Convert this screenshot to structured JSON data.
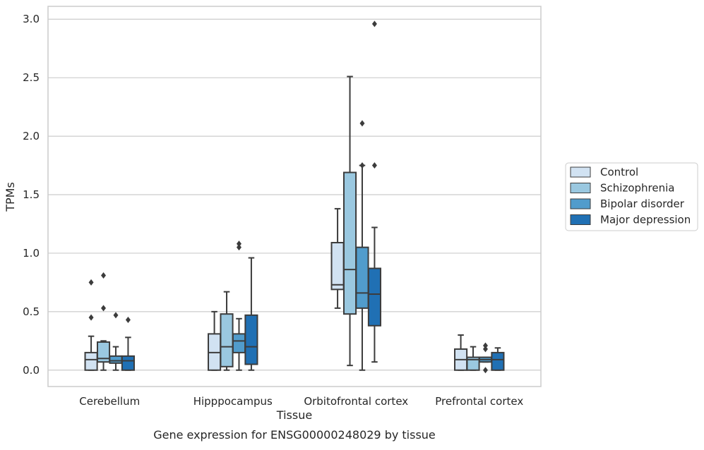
{
  "chart_data": {
    "type": "boxplot",
    "title": "",
    "caption": "Gene expression for ENSG00000248029 by tissue",
    "xlabel": "Tissue",
    "ylabel": "TPMs",
    "ylim": [
      -0.14,
      3.11
    ],
    "yticks": [
      0.0,
      0.5,
      1.0,
      1.5,
      2.0,
      2.5,
      3.0
    ],
    "ytick_labels": [
      "0.0",
      "0.5",
      "1.0",
      "1.5",
      "2.0",
      "2.5",
      "3.0"
    ],
    "grid": "horizontal",
    "legend_position": "right",
    "categories": [
      "Cerebellum",
      "Hipppocampus",
      "Orbitofrontal cortex",
      "Prefrontal cortex"
    ],
    "series": [
      {
        "name": "Control",
        "color": "#d1e2f2",
        "boxes": [
          {
            "whisker_low": 0.0,
            "q1": 0.0,
            "median": 0.09,
            "q3": 0.15,
            "whisker_high": 0.29,
            "outliers": [
              0.45,
              0.75
            ]
          },
          {
            "whisker_low": 0.0,
            "q1": 0.0,
            "median": 0.15,
            "q3": 0.31,
            "whisker_high": 0.5,
            "outliers": []
          },
          {
            "whisker_low": 0.53,
            "q1": 0.69,
            "median": 0.73,
            "q3": 1.09,
            "whisker_high": 1.38,
            "outliers": []
          },
          {
            "whisker_low": 0.0,
            "q1": 0.0,
            "median": 0.09,
            "q3": 0.18,
            "whisker_high": 0.3,
            "outliers": []
          }
        ]
      },
      {
        "name": "Schizophrenia",
        "color": "#9ac8e0",
        "boxes": [
          {
            "whisker_low": 0.0,
            "q1": 0.07,
            "median": 0.1,
            "q3": 0.24,
            "whisker_high": 0.25,
            "outliers": [
              0.53,
              0.81
            ]
          },
          {
            "whisker_low": 0.0,
            "q1": 0.03,
            "median": 0.2,
            "q3": 0.48,
            "whisker_high": 0.67,
            "outliers": []
          },
          {
            "whisker_low": 0.04,
            "q1": 0.48,
            "median": 0.86,
            "q3": 1.69,
            "whisker_high": 2.51,
            "outliers": []
          },
          {
            "whisker_low": 0.0,
            "q1": 0.0,
            "median": 0.09,
            "q3": 0.11,
            "whisker_high": 0.2,
            "outliers": []
          }
        ]
      },
      {
        "name": "Bipolar disorder",
        "color": "#519ccc",
        "boxes": [
          {
            "whisker_low": 0.0,
            "q1": 0.06,
            "median": 0.08,
            "q3": 0.12,
            "whisker_high": 0.2,
            "outliers": [
              0.47
            ]
          },
          {
            "whisker_low": 0.0,
            "q1": 0.15,
            "median": 0.25,
            "q3": 0.31,
            "whisker_high": 0.44,
            "outliers": [
              1.05,
              1.08
            ]
          },
          {
            "whisker_low": 0.0,
            "q1": 0.53,
            "median": 0.66,
            "q3": 1.05,
            "whisker_high": 1.75,
            "outliers": [
              1.75,
              2.11
            ]
          },
          {
            "whisker_low": 0.07,
            "q1": 0.07,
            "median": 0.09,
            "q3": 0.11,
            "whisker_high": 0.11,
            "outliers": [
              0.0,
              0.18,
              0.21
            ]
          }
        ]
      },
      {
        "name": "Major depression",
        "color": "#2070b4",
        "boxes": [
          {
            "whisker_low": 0.0,
            "q1": 0.0,
            "median": 0.08,
            "q3": 0.12,
            "whisker_high": 0.28,
            "outliers": [
              0.43
            ]
          },
          {
            "whisker_low": 0.0,
            "q1": 0.05,
            "median": 0.2,
            "q3": 0.47,
            "whisker_high": 0.96,
            "outliers": []
          },
          {
            "whisker_low": 0.07,
            "q1": 0.38,
            "median": 0.65,
            "q3": 0.87,
            "whisker_high": 1.22,
            "outliers": [
              1.75,
              2.96
            ]
          },
          {
            "whisker_low": 0.0,
            "q1": 0.0,
            "median": 0.09,
            "q3": 0.15,
            "whisker_high": 0.19,
            "outliers": []
          }
        ]
      }
    ]
  }
}
